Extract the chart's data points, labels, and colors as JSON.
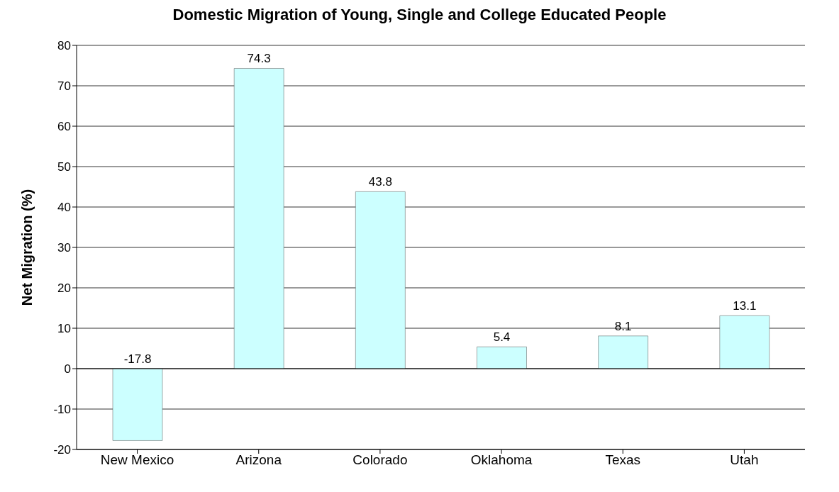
{
  "chart_data": {
    "type": "bar",
    "title": "Domestic Migration of Young, Single and College Educated People",
    "ylabel": "Net Migration (%)",
    "categories": [
      "New Mexico",
      "Arizona",
      "Colorado",
      "Oklahoma",
      "Texas",
      "Utah"
    ],
    "values": [
      -17.8,
      74.3,
      43.8,
      5.4,
      8.1,
      13.1
    ],
    "color": "#ccffff",
    "ylim": [
      -20,
      80
    ],
    "yticks": [
      -20,
      -10,
      0,
      10,
      20,
      30,
      40,
      50,
      60,
      70,
      80
    ],
    "grid": "y",
    "data_labels": true
  }
}
